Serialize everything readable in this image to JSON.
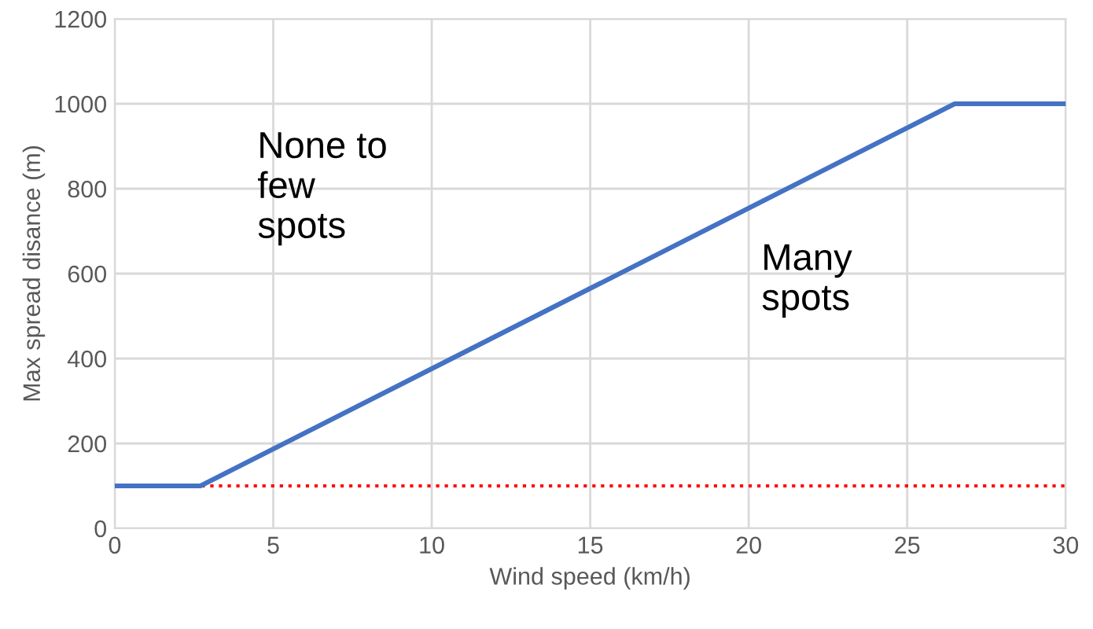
{
  "chart_data": {
    "type": "line",
    "xlabel": "Wind speed (km/h)",
    "ylabel": "Max spread disance (m)",
    "x": [
      0,
      2.7,
      26.5,
      30
    ],
    "series": [
      {
        "color": "#4472c4",
        "values": [
          100,
          100,
          1000,
          1000
        ]
      }
    ],
    "xlim": [
      0,
      30
    ],
    "xticks": [
      0,
      5,
      10,
      15,
      20,
      25,
      30
    ],
    "ylim": [
      0,
      1200
    ],
    "yticks": [
      0,
      200,
      400,
      600,
      800,
      1000,
      1200
    ],
    "grid": true,
    "legend": false,
    "marker": "none",
    "line_style": "solid",
    "ref_lines": [
      {
        "axis": "y",
        "value": 100,
        "color": "#ff0000",
        "line_style": "dotted"
      }
    ],
    "annotations": [
      "None to\nfew\nspots",
      "Many\nspots"
    ]
  }
}
